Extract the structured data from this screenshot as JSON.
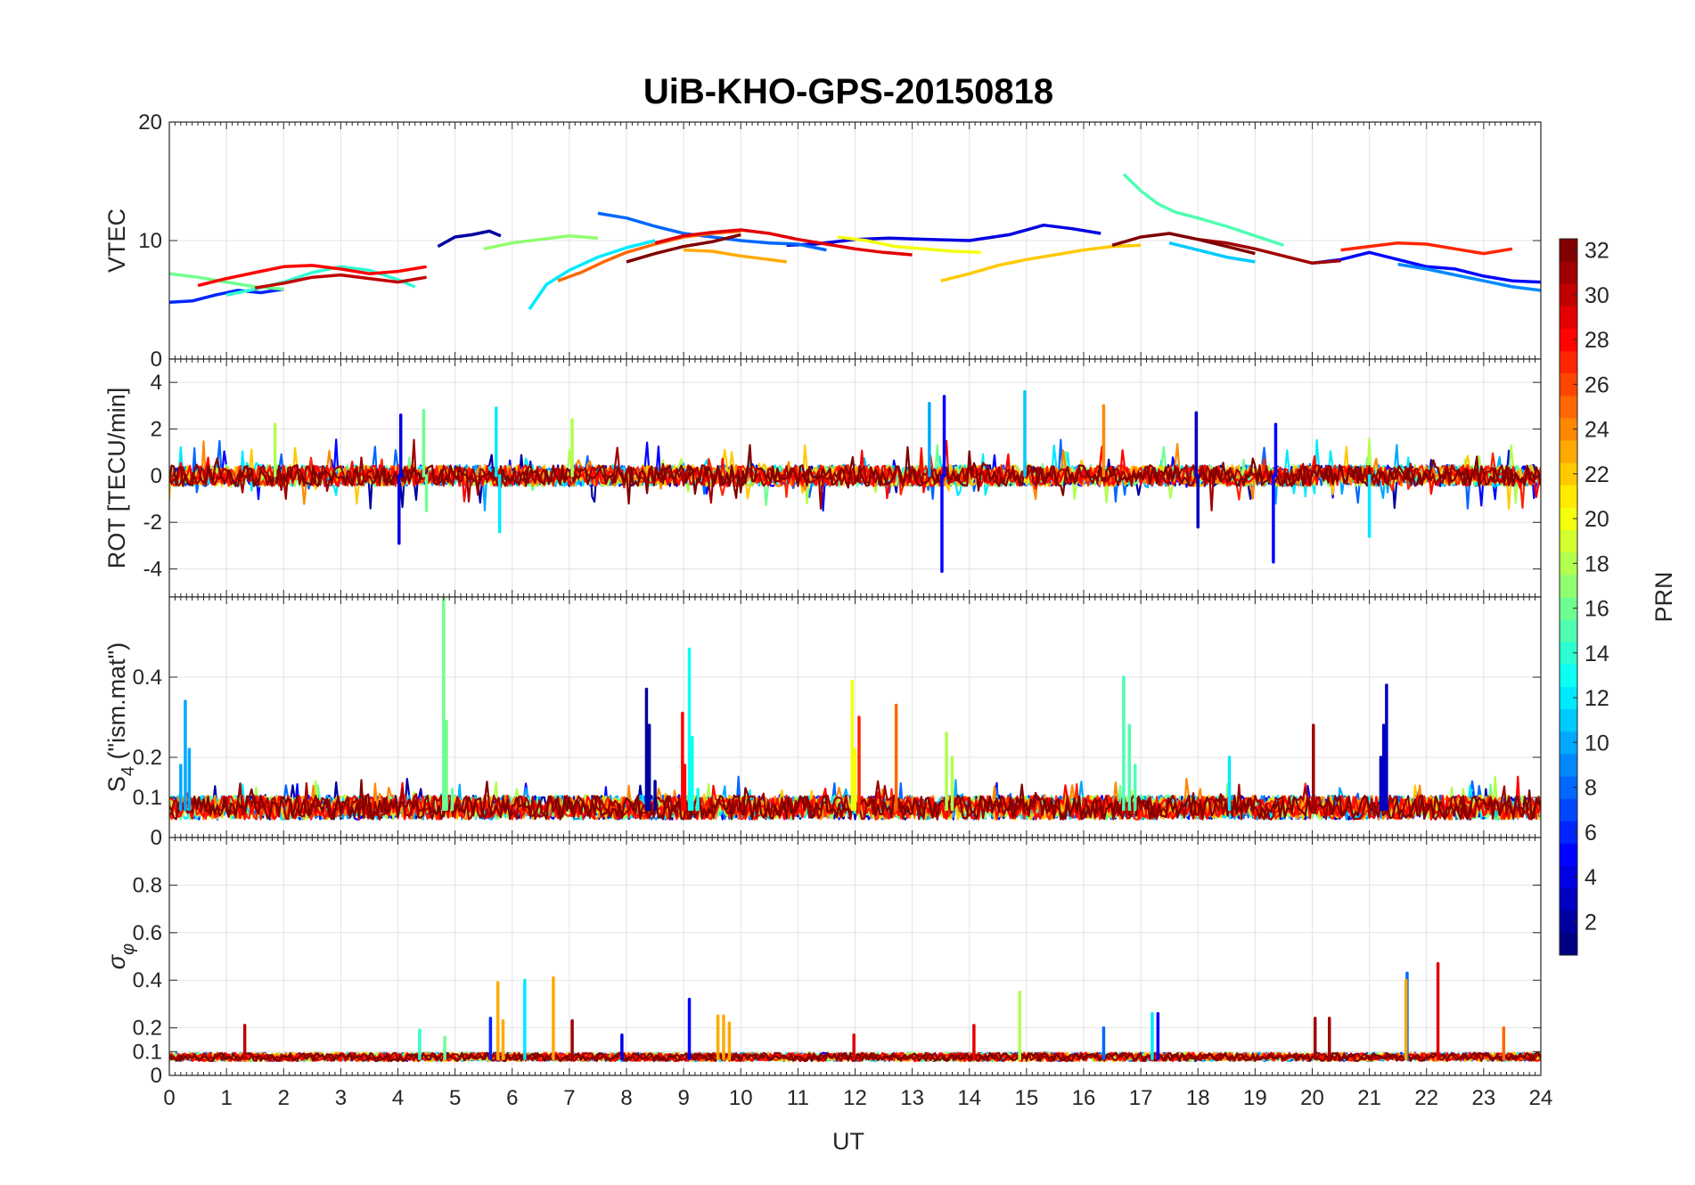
{
  "chart_data": {
    "type": "line",
    "title": "UiB-KHO-GPS-20150818",
    "xlabel": "UT",
    "xlim": [
      0,
      24
    ],
    "xticks": [
      "0",
      "1",
      "2",
      "3",
      "4",
      "5",
      "6",
      "7",
      "8",
      "9",
      "10",
      "11",
      "12",
      "13",
      "14",
      "15",
      "16",
      "17",
      "18",
      "19",
      "20",
      "21",
      "22",
      "23",
      "24"
    ],
    "grid": true,
    "colorbar": {
      "label": "PRN",
      "range": [
        1,
        32
      ],
      "ticks": [
        "2",
        "4",
        "6",
        "8",
        "10",
        "12",
        "14",
        "16",
        "18",
        "20",
        "22",
        "24",
        "26",
        "28",
        "30",
        "32"
      ],
      "colormap": "jet"
    },
    "panels": [
      {
        "ylabel": "VTEC",
        "ylim": [
          0,
          20
        ],
        "yticks": [
          "0",
          "10",
          "20"
        ],
        "series": [
          {
            "prn": 2,
            "x": [
              4.7,
              5.0,
              5.3,
              5.6,
              5.8
            ],
            "y": [
              9.5,
              10.3,
              10.5,
              10.8,
              10.4
            ]
          },
          {
            "prn": 4,
            "x": [
              10.8,
              11.3,
              12.0,
              12.6,
              13.3,
              14.0,
              14.7,
              15.3,
              15.8,
              16.3
            ],
            "y": [
              9.6,
              9.7,
              10.1,
              10.2,
              10.1,
              10.0,
              10.5,
              11.3,
              11.0,
              10.6
            ]
          },
          {
            "prn": 5,
            "x": [
              20.0,
              20.5,
              21.0,
              21.5,
              22.0,
              22.5,
              23.0,
              23.5,
              24.0
            ],
            "y": [
              8.1,
              8.4,
              9.0,
              8.4,
              7.8,
              7.6,
              7.0,
              6.6,
              6.5
            ]
          },
          {
            "prn": 6,
            "x": [
              0.0,
              0.4,
              0.8,
              1.2,
              1.6,
              2.0
            ],
            "y": [
              4.8,
              4.9,
              5.4,
              5.8,
              5.6,
              5.9
            ]
          },
          {
            "prn": 8,
            "x": [
              7.5,
              8.0,
              8.5,
              9.0,
              9.5,
              10.0,
              10.5,
              11.0,
              11.5
            ],
            "y": [
              12.3,
              11.9,
              11.2,
              10.6,
              10.3,
              10.0,
              9.8,
              9.7,
              9.2
            ]
          },
          {
            "prn": 9,
            "x": [
              21.5,
              22.0,
              22.5,
              23.0,
              23.5,
              24.0
            ],
            "y": [
              8.0,
              7.6,
              7.1,
              6.6,
              6.1,
              5.8
            ]
          },
          {
            "prn": 11,
            "x": [
              17.5,
              18.0,
              18.5,
              19.0
            ],
            "y": [
              9.8,
              9.2,
              8.6,
              8.2
            ]
          },
          {
            "prn": 12,
            "x": [
              6.3,
              6.6,
              7.0,
              7.5,
              8.0,
              8.5
            ],
            "y": [
              4.2,
              6.3,
              7.5,
              8.6,
              9.4,
              10.0
            ]
          },
          {
            "prn": 14,
            "x": [
              1.0,
              1.5,
              2.0,
              2.5,
              3.0,
              3.5,
              4.0,
              4.3
            ],
            "y": [
              5.4,
              5.9,
              6.5,
              7.3,
              7.8,
              7.5,
              6.7,
              6.1
            ]
          },
          {
            "prn": 15,
            "x": [
              16.7,
              17.0,
              17.3,
              17.6,
              18.0,
              18.5,
              19.0,
              19.5
            ],
            "y": [
              15.6,
              14.2,
              13.1,
              12.4,
              11.9,
              11.2,
              10.4,
              9.6
            ]
          },
          {
            "prn": 16,
            "x": [
              0.0,
              0.5,
              1.0,
              1.5,
              2.0
            ],
            "y": [
              7.2,
              6.9,
              6.5,
              6.1,
              5.9
            ]
          },
          {
            "prn": 17,
            "x": [
              5.5,
              6.0,
              6.5,
              7.0,
              7.5
            ],
            "y": [
              9.3,
              9.8,
              10.1,
              10.4,
              10.2
            ]
          },
          {
            "prn": 20,
            "x": [
              11.7,
              12.2,
              12.7,
              13.2,
              13.7,
              14.2
            ],
            "y": [
              10.3,
              10.0,
              9.5,
              9.3,
              9.1,
              9.0
            ]
          },
          {
            "prn": 22,
            "x": [
              13.5,
              14.0,
              14.5,
              15.0,
              15.5,
              16.0,
              16.5,
              17.0
            ],
            "y": [
              6.6,
              7.2,
              7.9,
              8.4,
              8.8,
              9.2,
              9.5,
              9.6
            ]
          },
          {
            "prn": 23,
            "x": [
              9.0,
              9.5,
              10.0,
              10.5,
              10.8
            ],
            "y": [
              9.2,
              9.1,
              8.7,
              8.4,
              8.2
            ]
          },
          {
            "prn": 25,
            "x": [
              6.8,
              7.2,
              7.6,
              8.0,
              8.5,
              9.0,
              9.5,
              10.0
            ],
            "y": [
              6.6,
              7.3,
              8.2,
              9.0,
              9.7,
              10.3,
              10.6,
              10.8
            ]
          },
          {
            "prn": 27,
            "x": [
              20.5,
              21.0,
              21.5,
              22.0,
              22.5,
              23.0,
              23.5
            ],
            "y": [
              9.2,
              9.5,
              9.8,
              9.7,
              9.3,
              8.9,
              9.3
            ]
          },
          {
            "prn": 28,
            "x": [
              0.5,
              1.0,
              1.5,
              2.0,
              2.5,
              3.0,
              3.5,
              4.0,
              4.5
            ],
            "y": [
              6.2,
              6.8,
              7.3,
              7.8,
              7.9,
              7.6,
              7.2,
              7.4,
              7.8
            ]
          },
          {
            "prn": 29,
            "x": [
              8.5,
              9.0,
              9.5,
              10.0,
              10.5,
              11.0,
              11.5,
              12.0,
              12.5,
              13.0
            ],
            "y": [
              9.8,
              10.4,
              10.7,
              10.9,
              10.6,
              10.1,
              9.7,
              9.3,
              9.0,
              8.8
            ]
          },
          {
            "prn": 30,
            "x": [
              1.5,
              2.0,
              2.5,
              3.0,
              3.5,
              4.0,
              4.5
            ],
            "y": [
              6.0,
              6.4,
              6.9,
              7.1,
              6.8,
              6.5,
              6.9
            ]
          },
          {
            "prn": 31,
            "x": [
              18.0,
              18.5,
              19.0,
              19.5,
              20.0,
              20.5
            ],
            "y": [
              10.1,
              9.8,
              9.3,
              8.7,
              8.1,
              8.3
            ]
          },
          {
            "prn": 32,
            "x": [
              8.0,
              8.5,
              9.0,
              9.5,
              10.0
            ],
            "y": [
              8.2,
              8.9,
              9.5,
              9.9,
              10.5
            ]
          },
          {
            "prn": 32,
            "x": [
              16.5,
              17.0,
              17.5,
              18.0,
              18.5,
              19.0
            ],
            "y": [
              9.6,
              10.3,
              10.6,
              10.1,
              9.5,
              8.9
            ]
          }
        ]
      },
      {
        "ylabel": "ROT [TECU/min]",
        "ylim": [
          -5.2,
          5.0
        ],
        "yticks": [
          "-4",
          "-2",
          "0",
          "2",
          "4"
        ],
        "spikes": [
          {
            "prn": 4,
            "x": [
              4.02,
              4.05,
              4.08
            ],
            "y": [
              -2.9,
              2.6,
              0.0
            ]
          },
          {
            "prn": 16,
            "x": [
              4.45,
              4.5
            ],
            "y": [
              2.8,
              -1.5
            ]
          },
          {
            "prn": 12,
            "x": [
              5.72,
              5.78
            ],
            "y": [
              2.9,
              -2.4
            ]
          },
          {
            "prn": 18,
            "x": [
              1.85
            ],
            "y": [
              2.2
            ]
          },
          {
            "prn": 18,
            "x": [
              7.05
            ],
            "y": [
              2.4
            ]
          },
          {
            "prn": 10,
            "x": [
              13.3
            ],
            "y": [
              3.1
            ]
          },
          {
            "prn": 5,
            "x": [
              13.52,
              13.56
            ],
            "y": [
              -4.1,
              3.4
            ]
          },
          {
            "prn": 11,
            "x": [
              14.97
            ],
            "y": [
              3.6
            ]
          },
          {
            "prn": 24,
            "x": [
              16.35
            ],
            "y": [
              3.0
            ]
          },
          {
            "prn": 3,
            "x": [
              17.97,
              18.0
            ],
            "y": [
              2.7,
              -2.2
            ]
          },
          {
            "prn": 5,
            "x": [
              19.32,
              19.36
            ],
            "y": [
              -3.7,
              2.2
            ]
          },
          {
            "prn": 12,
            "x": [
              21.0
            ],
            "y": [
              -2.6
            ]
          }
        ]
      },
      {
        "ylabel": "S4 (\"ism.mat\")",
        "ylabel_base": "S",
        "ylabel_sub": "4",
        "ylabel_rest": " (\"ism.mat\")",
        "ylim": [
          0,
          0.6
        ],
        "yticks": [
          "0",
          "0.1",
          "0.2",
          "0.4"
        ],
        "spikes": [
          {
            "prn": 10,
            "x": [
              0.2,
              0.28,
              0.35
            ],
            "y": [
              0.18,
              0.34,
              0.22
            ]
          },
          {
            "prn": 16,
            "x": [
              4.8,
              4.85,
              4.95
            ],
            "y": [
              0.6,
              0.29,
              0.12
            ]
          },
          {
            "prn": 2,
            "x": [
              8.35,
              8.4,
              8.5
            ],
            "y": [
              0.37,
              0.28,
              0.14
            ]
          },
          {
            "prn": 13,
            "x": [
              9.1,
              9.15,
              9.25
            ],
            "y": [
              0.47,
              0.25,
              0.12
            ]
          },
          {
            "prn": 28,
            "x": [
              8.98,
              9.02
            ],
            "y": [
              0.31,
              0.18
            ]
          },
          {
            "prn": 20,
            "x": [
              11.95,
              12.0
            ],
            "y": [
              0.39,
              0.22
            ]
          },
          {
            "prn": 27,
            "x": [
              12.07
            ],
            "y": [
              0.3
            ]
          },
          {
            "prn": 25,
            "x": [
              12.72
            ],
            "y": [
              0.33
            ]
          },
          {
            "prn": 18,
            "x": [
              13.6,
              13.7
            ],
            "y": [
              0.26,
              0.2
            ]
          },
          {
            "prn": 15,
            "x": [
              16.7,
              16.8,
              16.9
            ],
            "y": [
              0.4,
              0.28,
              0.18
            ]
          },
          {
            "prn": 31,
            "x": [
              20.02
            ],
            "y": [
              0.28
            ]
          },
          {
            "prn": 3,
            "x": [
              21.3,
              21.25,
              21.2
            ],
            "y": [
              0.38,
              0.28,
              0.2
            ]
          },
          {
            "prn": 12,
            "x": [
              18.55
            ],
            "y": [
              0.2
            ]
          }
        ]
      },
      {
        "ylabel": "σ φ",
        "ylabel_base": "σ",
        "ylabel_sub": "φ",
        "ylim": [
          0,
          1.0
        ],
        "yticks": [
          "0",
          "0.1",
          "0.2",
          "0.4",
          "0.6",
          "0.8"
        ],
        "spikes": [
          {
            "prn": 30,
            "x": [
              1.32
            ],
            "y": [
              0.21
            ]
          },
          {
            "prn": 14,
            "x": [
              4.38
            ],
            "y": [
              0.19
            ]
          },
          {
            "prn": 16,
            "x": [
              4.82
            ],
            "y": [
              0.16
            ]
          },
          {
            "prn": 6,
            "x": [
              5.62
            ],
            "y": [
              0.24
            ]
          },
          {
            "prn": 23,
            "x": [
              5.75,
              5.84
            ],
            "y": [
              0.39,
              0.23
            ]
          },
          {
            "prn": 12,
            "x": [
              6.22
            ],
            "y": [
              0.4
            ]
          },
          {
            "prn": 23,
            "x": [
              6.72
            ],
            "y": [
              0.41
            ]
          },
          {
            "prn": 31,
            "x": [
              7.05
            ],
            "y": [
              0.23
            ]
          },
          {
            "prn": 4,
            "x": [
              7.92
            ],
            "y": [
              0.17
            ]
          },
          {
            "prn": 5,
            "x": [
              9.1
            ],
            "y": [
              0.32
            ]
          },
          {
            "prn": 23,
            "x": [
              9.6,
              9.7,
              9.8
            ],
            "y": [
              0.25,
              0.25,
              0.22
            ]
          },
          {
            "prn": 29,
            "x": [
              11.98
            ],
            "y": [
              0.17
            ]
          },
          {
            "prn": 29,
            "x": [
              14.08
            ],
            "y": [
              0.21
            ]
          },
          {
            "prn": 18,
            "x": [
              14.88
            ],
            "y": [
              0.35
            ]
          },
          {
            "prn": 8,
            "x": [
              16.35
            ],
            "y": [
              0.2
            ]
          },
          {
            "prn": 12,
            "x": [
              17.2
            ],
            "y": [
              0.26
            ]
          },
          {
            "prn": 5,
            "x": [
              17.3
            ],
            "y": [
              0.26
            ]
          },
          {
            "prn": 31,
            "x": [
              20.05
            ],
            "y": [
              0.24
            ]
          },
          {
            "prn": 31,
            "x": [
              20.3
            ],
            "y": [
              0.24
            ]
          },
          {
            "prn": 8,
            "x": [
              21.66
            ],
            "y": [
              0.43
            ]
          },
          {
            "prn": 23,
            "x": [
              21.64
            ],
            "y": [
              0.4
            ]
          },
          {
            "prn": 29,
            "x": [
              22.2
            ],
            "y": [
              0.47
            ]
          },
          {
            "prn": 25,
            "x": [
              23.35
            ],
            "y": [
              0.2
            ]
          }
        ]
      }
    ]
  }
}
